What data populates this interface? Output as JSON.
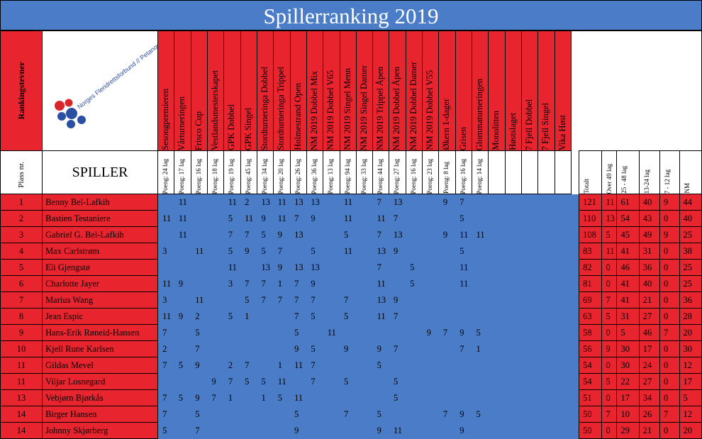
{
  "title": "Spillerranking 2019",
  "header": {
    "rankingstevner_label": "Rankingstevner",
    "logo_text": "Norges Fleridrettsforbund // Petanque",
    "plass_label": "Plass nr.",
    "spiller_label": "SPILLER"
  },
  "colors": {
    "red": "#e8252f",
    "blue": "#4a7cc7"
  },
  "events": [
    {
      "name": "Sesongpremieren",
      "sub": "Poeng: 24 lag"
    },
    {
      "name": "Vårturneringen",
      "sub": "Poeng: 17 lag"
    },
    {
      "name": "Frisco Cup",
      "sub": "Poeng: 16 lag"
    },
    {
      "name": "Vestlandsmesterskapet",
      "sub": "Poeng: 18 lag"
    },
    {
      "name": "GPK Dobbel",
      "sub": "Poeng: 19 lag"
    },
    {
      "name": "GPK Singel",
      "sub": "Poeng: 45 lag"
    },
    {
      "name": "Stordturneringa Dobbel",
      "sub": "Poeng: 34 lag"
    },
    {
      "name": "Stordturneringa Trippel",
      "sub": "Poeng: 20 lag"
    },
    {
      "name": "Holmestrand Open",
      "sub": "Poeng: 26 lag"
    },
    {
      "name": "NM 2019 Dobbel Mix",
      "sub": "Poeng: 36 lag"
    },
    {
      "name": "NM 2019 Dobbel V65",
      "sub": "Poeng: 13 lag"
    },
    {
      "name": "NM 2019 Singel Menn",
      "sub": "Poeng: 94 lag"
    },
    {
      "name": "NM 2019 Singel Damer",
      "sub": "Poeng: 33 lag"
    },
    {
      "name": "NM 2019 Trippel Åpen",
      "sub": "Poeng: 44 lag"
    },
    {
      "name": "NM 2019 Dobbel Åpen",
      "sub": "Poeng: 27 lag"
    },
    {
      "name": "NM 2019 Dobbel Damer",
      "sub": "Poeng: 16 lag"
    },
    {
      "name": "NM 2019 Dobbel V55",
      "sub": "Poeng: 23 lag"
    },
    {
      "name": "Økern 1-dager",
      "sub": "Poeng: 8 lag"
    },
    {
      "name": "Grisen",
      "sub": "Poeng: 16 lag"
    },
    {
      "name": "Glommaturneringen",
      "sub": "Poeng: 14 lag"
    },
    {
      "name": "Monolitten",
      "sub": ""
    },
    {
      "name": "Høstslaget",
      "sub": ""
    },
    {
      "name": "7 Fjell Dobbel",
      "sub": ""
    },
    {
      "name": "7 Fjell Singel",
      "sub": ""
    },
    {
      "name": "Vika Høst",
      "sub": ""
    }
  ],
  "summary_headers": [
    "Totalt",
    "Over 49 lag",
    "25 - 48 lag",
    "13-24 lag",
    "7 - 12 lag",
    "NM"
  ],
  "players": [
    {
      "rank": "1",
      "name": "Benny Bel-Lafkih",
      "scores": [
        "",
        "11",
        "",
        "",
        "11",
        "2",
        "13",
        "11",
        "13",
        "13",
        "",
        "11",
        "",
        "7",
        "13",
        "",
        "",
        "9",
        "7",
        "",
        "",
        "",
        "",
        "",
        ""
      ],
      "totals": [
        "121",
        "11",
        "61",
        "40",
        "9",
        "44"
      ]
    },
    {
      "rank": "2",
      "name": "Bastien Testaniere",
      "scores": [
        "11",
        "11",
        "",
        "",
        "5",
        "11",
        "9",
        "11",
        "7",
        "9",
        "",
        "11",
        "",
        "11",
        "7",
        "",
        "",
        "",
        "5",
        "",
        "",
        "",
        "",
        "",
        ""
      ],
      "totals": [
        "110",
        "13",
        "54",
        "43",
        "0",
        "40"
      ]
    },
    {
      "rank": "3",
      "name": "Gabriel G. Bel-Lafkih",
      "scores": [
        "",
        "11",
        "",
        "",
        "7",
        "7",
        "5",
        "9",
        "13",
        "",
        "",
        "5",
        "",
        "7",
        "13",
        "",
        "",
        "9",
        "11",
        "11",
        "",
        "",
        "",
        "",
        ""
      ],
      "totals": [
        "108",
        "5",
        "45",
        "49",
        "9",
        "25"
      ]
    },
    {
      "rank": "4",
      "name": "Max Carlstrøm",
      "scores": [
        "3",
        "",
        "11",
        "",
        "5",
        "9",
        "5",
        "7",
        "",
        "5",
        "",
        "11",
        "",
        "13",
        "9",
        "",
        "",
        "",
        "5",
        "",
        "",
        "",
        "",
        "",
        ""
      ],
      "totals": [
        "83",
        "11",
        "41",
        "31",
        "0",
        "38"
      ]
    },
    {
      "rank": "5",
      "name": "Eli Gjengstø",
      "scores": [
        "",
        "",
        "",
        "",
        "11",
        "",
        "13",
        "9",
        "13",
        "13",
        "",
        "",
        "",
        "7",
        "",
        "5",
        "",
        "",
        "11",
        "",
        "",
        "",
        "",
        "",
        ""
      ],
      "totals": [
        "82",
        "0",
        "46",
        "36",
        "0",
        "25"
      ]
    },
    {
      "rank": "6",
      "name": "Charlotte Jayer",
      "scores": [
        "11",
        "9",
        "",
        "",
        "3",
        "7",
        "7",
        "1",
        "7",
        "9",
        "",
        "",
        "",
        "11",
        "",
        "5",
        "",
        "",
        "11",
        "",
        "",
        "",
        "",
        "",
        ""
      ],
      "totals": [
        "81",
        "0",
        "41",
        "40",
        "0",
        "25"
      ]
    },
    {
      "rank": "7",
      "name": "Marius Wang",
      "scores": [
        "3",
        "",
        "11",
        "",
        "",
        "5",
        "7",
        "7",
        "7",
        "7",
        "",
        "7",
        "",
        "13",
        "9",
        "",
        "",
        "",
        "",
        "",
        "",
        "",
        "",
        "",
        ""
      ],
      "totals": [
        "69",
        "7",
        "41",
        "21",
        "0",
        "36"
      ]
    },
    {
      "rank": "8",
      "name": "Jean Espic",
      "scores": [
        "11",
        "9",
        "2",
        "",
        "5",
        "1",
        "",
        "",
        "7",
        "5",
        "",
        "5",
        "",
        "11",
        "7",
        "",
        "",
        "",
        "",
        "",
        "",
        "",
        "",
        "",
        ""
      ],
      "totals": [
        "63",
        "5",
        "31",
        "27",
        "0",
        "28"
      ]
    },
    {
      "rank": "9",
      "name": "Hans-Erik Røneid-Hansen",
      "scores": [
        "7",
        "",
        "5",
        "",
        "",
        "",
        "",
        "",
        "5",
        "",
        "11",
        "",
        "",
        "",
        "",
        "",
        "9",
        "7",
        "9",
        "5",
        "",
        "",
        "",
        "",
        ""
      ],
      "totals": [
        "58",
        "0",
        "5",
        "46",
        "7",
        "20"
      ]
    },
    {
      "rank": "10",
      "name": "Kjell Rune Karlsen",
      "scores": [
        "2",
        "",
        "7",
        "",
        "",
        "",
        "",
        "",
        "9",
        "5",
        "",
        "9",
        "",
        "9",
        "7",
        "",
        "",
        "",
        "7",
        "1",
        "",
        "",
        "",
        "",
        ""
      ],
      "totals": [
        "56",
        "9",
        "30",
        "17",
        "0",
        "30"
      ]
    },
    {
      "rank": "11",
      "name": "Gildas Mevel",
      "scores": [
        "7",
        "5",
        "9",
        "",
        "2",
        "7",
        "",
        "1",
        "11",
        "7",
        "",
        "",
        "",
        "5",
        "",
        "",
        "",
        "",
        "",
        "",
        "",
        "",
        "",
        "",
        ""
      ],
      "totals": [
        "54",
        "0",
        "30",
        "24",
        "0",
        "12"
      ]
    },
    {
      "rank": "11",
      "name": "Viljar Losnegard",
      "scores": [
        "",
        "",
        "",
        "9",
        "7",
        "5",
        "5",
        "11",
        "",
        "7",
        "",
        "5",
        "",
        "",
        "5",
        "",
        "",
        "",
        "",
        "",
        "",
        "",
        "",
        "",
        ""
      ],
      "totals": [
        "54",
        "5",
        "22",
        "27",
        "0",
        "17"
      ]
    },
    {
      "rank": "13",
      "name": "Vebjørn Bjørkås",
      "scores": [
        "7",
        "5",
        "9",
        "7",
        "1",
        "",
        "1",
        "5",
        "11",
        "",
        "",
        "",
        "",
        "",
        "5",
        "",
        "",
        "",
        "",
        "",
        "",
        "",
        "",
        "",
        ""
      ],
      "totals": [
        "51",
        "0",
        "17",
        "34",
        "0",
        "5"
      ]
    },
    {
      "rank": "14",
      "name": "Birger Hansen",
      "scores": [
        "7",
        "",
        "5",
        "",
        "",
        "",
        "",
        "",
        "5",
        "",
        "",
        "7",
        "",
        "5",
        "",
        "",
        "",
        "7",
        "9",
        "5",
        "",
        "",
        "",
        "",
        ""
      ],
      "totals": [
        "50",
        "7",
        "10",
        "26",
        "7",
        "12"
      ]
    },
    {
      "rank": "14",
      "name": "Johnny Skjørberg",
      "scores": [
        "5",
        "",
        "7",
        "",
        "",
        "",
        "",
        "",
        "9",
        "",
        "",
        "",
        "",
        "9",
        "11",
        "",
        "",
        "",
        "9",
        "",
        "",
        "",
        "",
        "",
        ""
      ],
      "totals": [
        "50",
        "0",
        "29",
        "21",
        "0",
        "20"
      ]
    }
  ]
}
